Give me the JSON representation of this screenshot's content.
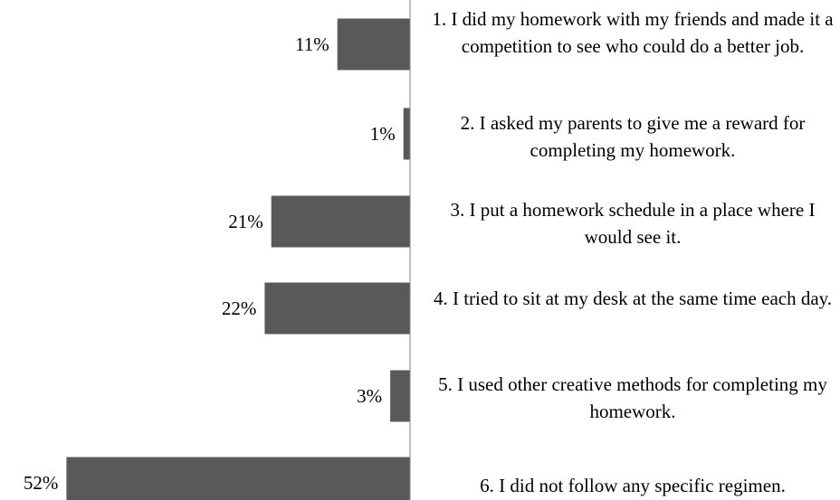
{
  "chart_data": {
    "type": "bar",
    "orientation": "horizontal",
    "title": "",
    "xlabel": "",
    "ylabel": "",
    "xlim": [
      0,
      52
    ],
    "grid": false,
    "legend": "none",
    "bar_color": "#595959",
    "categories": [
      "1. I did my homework with my friends and made it a competition to see who could do a better job.",
      "2. I asked my parents to give me a reward for completing my homework.",
      "3. I put a homework schedule in a place where I would see it.",
      "4. I tried to sit at my desk at the same time each day.",
      "5. I used other creative methods for completing my homework.",
      "6. I did not follow any specific regimen."
    ],
    "values": [
      11,
      1,
      21,
      22,
      3,
      52
    ],
    "value_labels": [
      "11%",
      "1%",
      "21%",
      "22%",
      "3%",
      "52%"
    ],
    "value_unit": "%"
  }
}
